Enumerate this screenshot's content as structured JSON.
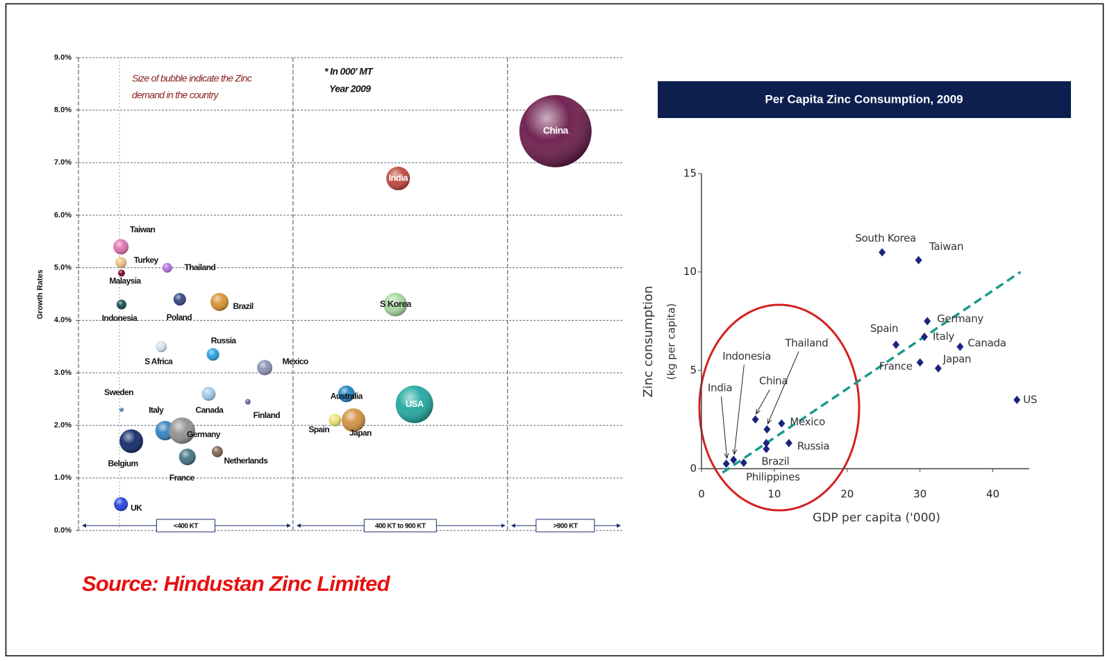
{
  "chart_data": [
    {
      "type": "bubble",
      "ylabel": "Growth Rates",
      "annotations": [
        "Size of bubble indicate the Zinc",
        "demand in the country"
      ],
      "notes": [
        "* In 000' MT",
        "Year 2009"
      ],
      "xlim": [
        0,
        100
      ],
      "ylim": [
        0,
        9
      ],
      "yticks": [
        {
          "value": 0,
          "label": "0.0%"
        },
        {
          "value": 1,
          "label": "1.0%"
        },
        {
          "value": 2,
          "label": "2.0%"
        },
        {
          "value": 3,
          "label": "3.0%"
        },
        {
          "value": 4,
          "label": "4.0%"
        },
        {
          "value": 5,
          "label": "5.0%"
        },
        {
          "value": 6,
          "label": "6.0%"
        },
        {
          "value": 7,
          "label": "7.0%"
        },
        {
          "value": 8,
          "label": "8.0%"
        },
        {
          "value": 9,
          "label": "9.0%"
        }
      ],
      "grid": true,
      "zones": [
        {
          "label": "<400 KT",
          "from": 0,
          "to": 39.4
        },
        {
          "label": "400 KT to 900 KT",
          "from": 39.4,
          "to": 78.8
        },
        {
          "label": ">900 KT",
          "from": 78.8,
          "to": 100
        }
      ],
      "points": [
        {
          "name": "China",
          "x": 87.6,
          "y": 7.6,
          "size": 52,
          "color": "#6b1a4a"
        },
        {
          "name": "India",
          "x": 58.7,
          "y": 6.7,
          "size": 17,
          "color": "#c0443a"
        },
        {
          "name": "S Korea",
          "x": 58.2,
          "y": 4.3,
          "size": 17,
          "color": "#a8d8a0"
        },
        {
          "name": "USA",
          "x": 61.7,
          "y": 2.4,
          "size": 27,
          "color": "#20a8a0"
        },
        {
          "name": "Australia",
          "x": 49.2,
          "y": 2.6,
          "size": 12,
          "color": "#1a80c0"
        },
        {
          "name": "Japan",
          "x": 50.5,
          "y": 2.1,
          "size": 17,
          "color": "#d09040"
        },
        {
          "name": "Spain",
          "x": 47.1,
          "y": 2.1,
          "size": 9,
          "color": "#e8e070"
        },
        {
          "name": "Taiwan",
          "x": 7.8,
          "y": 5.4,
          "size": 11,
          "color": "#e070b0"
        },
        {
          "name": "Turkey",
          "x": 7.8,
          "y": 5.1,
          "size": 8,
          "color": "#f0c080"
        },
        {
          "name": "Malaysia",
          "x": 7.9,
          "y": 4.9,
          "size": 5,
          "color": "#800020"
        },
        {
          "name": "Thailand",
          "x": 16.3,
          "y": 5.0,
          "size": 7,
          "color": "#b070e0"
        },
        {
          "name": "Indonesia",
          "x": 7.9,
          "y": 4.3,
          "size": 7,
          "color": "#104848"
        },
        {
          "name": "Poland",
          "x": 18.6,
          "y": 4.4,
          "size": 9,
          "color": "#304080"
        },
        {
          "name": "Brazil",
          "x": 25.9,
          "y": 4.35,
          "size": 13,
          "color": "#d89030"
        },
        {
          "name": "S Africa",
          "x": 15.2,
          "y": 3.5,
          "size": 8,
          "color": "#d0e0f0"
        },
        {
          "name": "Russia",
          "x": 24.7,
          "y": 3.35,
          "size": 9,
          "color": "#20a0e0"
        },
        {
          "name": "Mexico",
          "x": 34.2,
          "y": 3.1,
          "size": 11,
          "color": "#8890b0"
        },
        {
          "name": "Sweden",
          "x": 7.9,
          "y": 2.3,
          "size": 3,
          "color": "#4080c0"
        },
        {
          "name": "Canada",
          "x": 23.9,
          "y": 2.6,
          "size": 10,
          "color": "#a0c8e8"
        },
        {
          "name": "Finland",
          "x": 31.1,
          "y": 2.45,
          "size": 4,
          "color": "#6060a0"
        },
        {
          "name": "Italy",
          "x": 15.9,
          "y": 1.9,
          "size": 14,
          "color": "#3080c0"
        },
        {
          "name": "Germany",
          "x": 19.0,
          "y": 1.9,
          "size": 19,
          "color": "#909090"
        },
        {
          "name": "Belgium",
          "x": 9.7,
          "y": 1.7,
          "size": 17,
          "color": "#102868"
        },
        {
          "name": "France",
          "x": 20.0,
          "y": 1.4,
          "size": 12,
          "color": "#407080"
        },
        {
          "name": "Netherlands",
          "x": 25.5,
          "y": 1.5,
          "size": 8,
          "color": "#806050"
        },
        {
          "name": "UK",
          "x": 7.8,
          "y": 0.5,
          "size": 10,
          "color": "#2040e0"
        }
      ]
    },
    {
      "type": "scatter",
      "title": "Per Capita Zinc Consumption, 2009",
      "xlabel": "GDP per capita ('000)",
      "ylabel": [
        "Zinc consumption",
        "(kg per capita)"
      ],
      "xlim": [
        0,
        45
      ],
      "xticks": [
        0,
        10,
        20,
        30,
        40
      ],
      "ylim": [
        0,
        15
      ],
      "yticks": [
        0,
        5,
        10,
        15
      ],
      "color": "#1a237e",
      "trendline": {
        "x": [
          2.9,
          43.8
        ],
        "y": [
          -0.2,
          10.0
        ],
        "color": "#1a9a8a"
      },
      "points": [
        {
          "name": "South Korea",
          "x": 24.8,
          "y": 11.0
        },
        {
          "name": "Taiwan",
          "x": 29.8,
          "y": 10.6
        },
        {
          "name": "Germany",
          "x": 31.0,
          "y": 7.5
        },
        {
          "name": "Spain",
          "x": 26.7,
          "y": 6.3
        },
        {
          "name": "Italy",
          "x": 30.6,
          "y": 6.7
        },
        {
          "name": "Canada",
          "x": 35.5,
          "y": 6.2
        },
        {
          "name": "France",
          "x": 30.0,
          "y": 5.4
        },
        {
          "name": "Japan",
          "x": 32.5,
          "y": 5.1
        },
        {
          "name": "US",
          "x": 43.3,
          "y": 3.5
        },
        {
          "name": "Mexico",
          "x": 11.0,
          "y": 2.3
        },
        {
          "name": "Russia",
          "x": 12.0,
          "y": 1.3
        },
        {
          "name": "Thailand",
          "x": 9.0,
          "y": 2.0
        },
        {
          "name": "China",
          "x": 7.4,
          "y": 2.5
        },
        {
          "name": "Brazil",
          "x": 8.9,
          "y": 1.3
        },
        {
          "name": "Philippines",
          "x": 5.8,
          "y": 0.3
        },
        {
          "name": "India",
          "x": 3.4,
          "y": 0.25
        },
        {
          "name": "Indonesia",
          "x": 4.4,
          "y": 0.45
        },
        {
          "name": null,
          "x": 8.9,
          "y": 1.0
        }
      ]
    }
  ],
  "source": "Source: Hindustan Zinc Limited"
}
